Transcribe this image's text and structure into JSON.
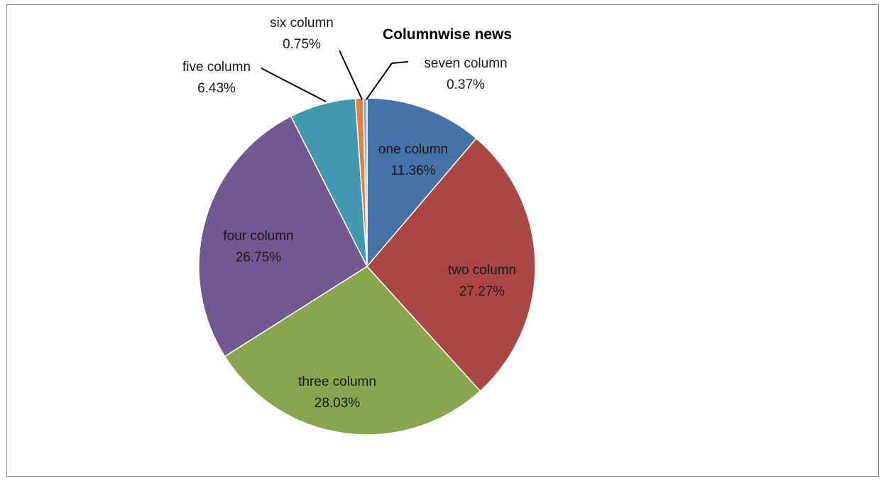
{
  "chart_data": {
    "type": "pie",
    "title": "Columnwise news",
    "slices": [
      {
        "label": "one column",
        "value": 11.36,
        "value_label": "11.36%",
        "color": "#4572a7"
      },
      {
        "label": "two column",
        "value": 27.27,
        "value_label": "27.27%",
        "color": "#aa4643"
      },
      {
        "label": "three column",
        "value": 28.03,
        "value_label": "28.03%",
        "color": "#89a54e"
      },
      {
        "label": "four column",
        "value": 26.75,
        "value_label": "26.75%",
        "color": "#71588f"
      },
      {
        "label": "five column",
        "value": 6.43,
        "value_label": "6.43%",
        "color": "#4198af"
      },
      {
        "label": "six column",
        "value": 0.75,
        "value_label": "0.75%",
        "color": "#db843d"
      },
      {
        "label": "seven  column",
        "value": 0.37,
        "value_label": "0.37%",
        "color": "#93a9cf"
      }
    ],
    "start_angle_deg": 0,
    "direction": "clockwise",
    "legend": "none"
  }
}
